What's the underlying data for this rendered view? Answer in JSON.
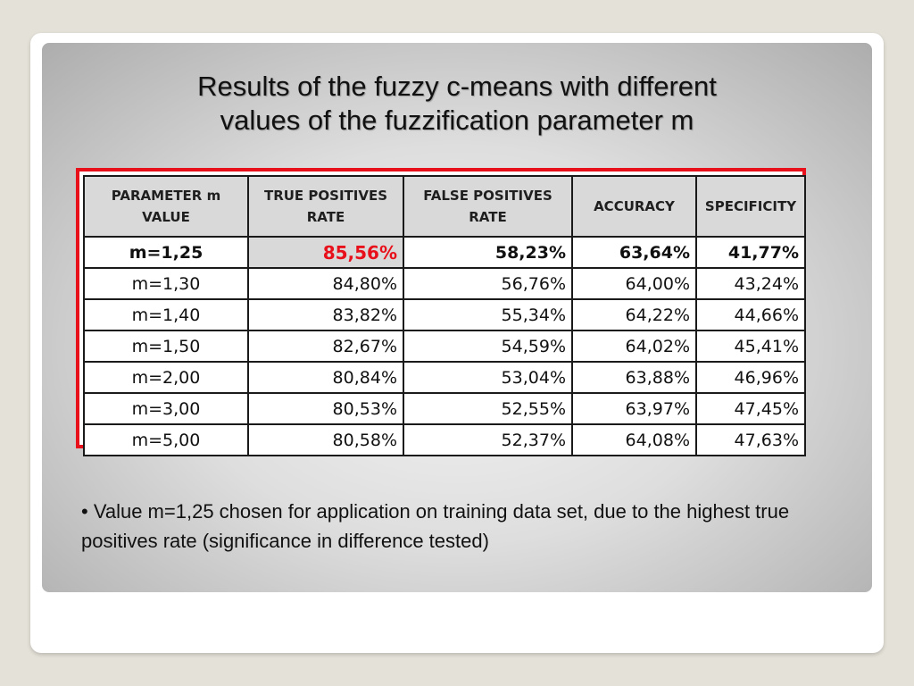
{
  "slide": {
    "title_line1": "Results of the fuzzy c-means with different",
    "title_line2": "values of the fuzzification parameter m",
    "note": "• Value m=1,25 chosen for application on training data set, due to the highest true positives rate (significance in difference tested)",
    "accent_color": "#e8101b"
  },
  "table": {
    "headers": [
      [
        "PARAMETER m",
        "VALUE"
      ],
      [
        "TRUE POSITIVES",
        "RATE"
      ],
      [
        "FALSE POSITIVES",
        "RATE"
      ],
      [
        "ACCURACY"
      ],
      [
        "SPECIFICITY"
      ]
    ],
    "rows": [
      [
        "m=1,25",
        "85,56%",
        "58,23%",
        "63,64%",
        "41,77%"
      ],
      [
        "m=1,30",
        "84,80%",
        "56,76%",
        "64,00%",
        "43,24%"
      ],
      [
        "m=1,40",
        "83,82%",
        "55,34%",
        "64,22%",
        "44,66%"
      ],
      [
        "m=1,50",
        "82,67%",
        "54,59%",
        "64,02%",
        "45,41%"
      ],
      [
        "m=2,00",
        "80,84%",
        "53,04%",
        "63,88%",
        "46,96%"
      ],
      [
        "m=3,00",
        "80,53%",
        "52,55%",
        "63,97%",
        "47,45%"
      ],
      [
        "m=5,00",
        "80,58%",
        "52,37%",
        "64,08%",
        "47,63%"
      ]
    ]
  }
}
